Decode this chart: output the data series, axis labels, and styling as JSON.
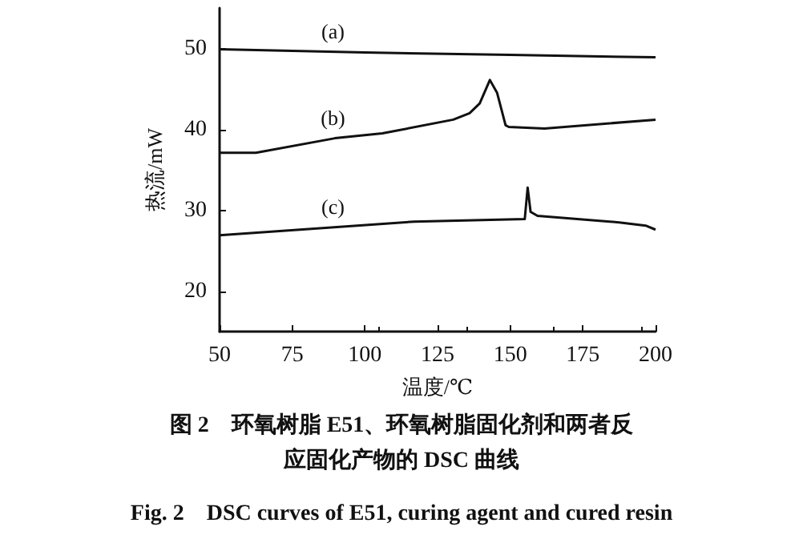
{
  "chart_data": {
    "type": "line",
    "title": "图 2　环氧树脂 E51、环氧树脂固化剂和两者反应固化产物的 DSC 曲线",
    "subtitle": "Fig. 2　DSC curves of E51, curing agent and cured resin",
    "xlabel": "温度/℃",
    "ylabel": "热流/mW",
    "xlim": [
      50,
      200
    ],
    "xticks": [
      50,
      75,
      100,
      125,
      150,
      175,
      200
    ],
    "ylim": [
      15,
      55
    ],
    "yticks": [
      20,
      30,
      40,
      50
    ],
    "grid": false,
    "marker": "none",
    "line_style": "solid",
    "series": [
      {
        "color": "#111111",
        "x": [
          50,
          100,
          150,
          200
        ],
        "values": [
          49.9,
          49.5,
          49.2,
          48.9
        ]
      },
      {
        "color": "#111111",
        "x": [
          50,
          62.5,
          89.7,
          106,
          130.4,
          136,
          139.5,
          143,
          145.5,
          148.4,
          149.5,
          161.8,
          200
        ],
        "values": [
          37.1,
          37.1,
          38.9,
          39.5,
          41.2,
          42,
          43.2,
          46.1,
          44.5,
          40.5,
          40.3,
          40.1,
          41.2
        ]
      },
      {
        "color": "#111111",
        "x": [
          50,
          117,
          155,
          156,
          157,
          159.4,
          187.5,
          196.6,
          200
        ],
        "values": [
          26.9,
          28.6,
          28.9,
          32.8,
          29.8,
          29.3,
          28.5,
          28.1,
          27.6
        ]
      }
    ],
    "annotations": [
      "(a)",
      "(b)",
      "(c)"
    ]
  }
}
